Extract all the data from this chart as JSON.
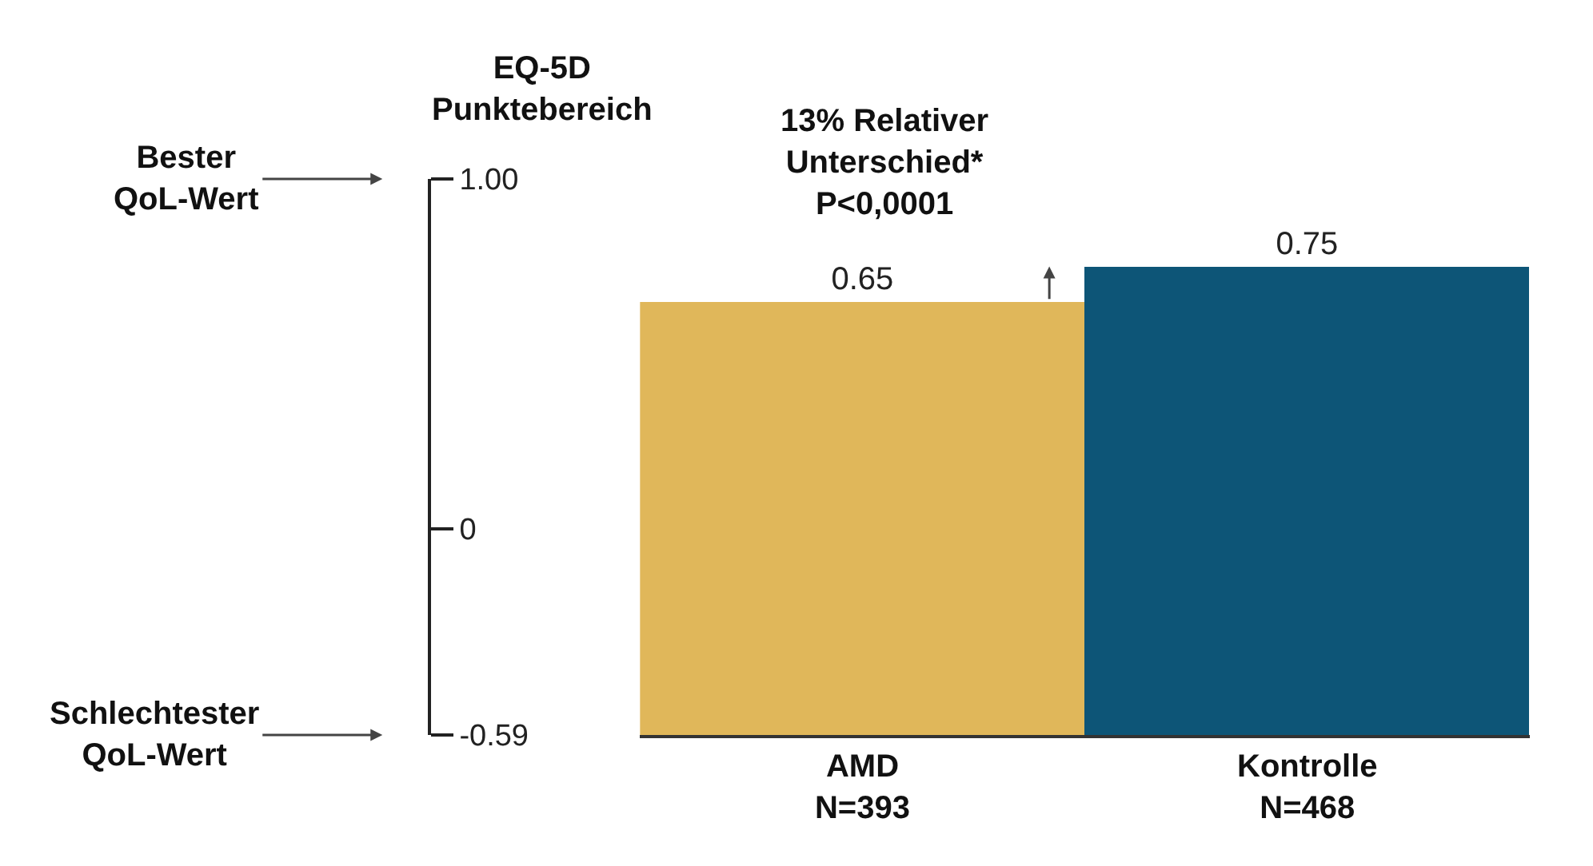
{
  "chart_data": {
    "type": "bar",
    "ylabel": "EQ-5D\nPunktebereich",
    "categories": [
      "AMD\nN=393",
      "Kontrolle\nN=468"
    ],
    "base": [
      -0.59,
      -0.59
    ],
    "values": [
      1.24,
      1.34
    ],
    "value_labels": [
      "0.65",
      "0.75"
    ],
    "colors": [
      "#e0b75a",
      "#0d5577"
    ],
    "ylim": [
      -0.59,
      1.0
    ],
    "yticks": [
      {
        "value": 1.0,
        "label": "1.00"
      },
      0,
      -0.59
    ],
    "annotations": [
      "Bester\nQoL-Wert",
      "Schlechtester\nQoL-Wert",
      "13% Relativer\nUnterschied*\nP<0,0001"
    ],
    "grid": false
  }
}
